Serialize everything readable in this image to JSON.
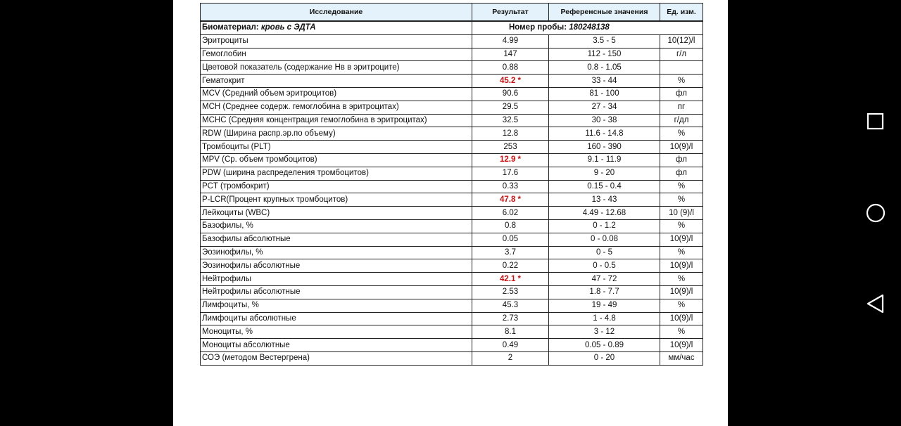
{
  "table": {
    "header": [
      "Исследование",
      "Результат",
      "Референсные значения",
      "Ед. изм."
    ],
    "biomaterial": {
      "label": "Биоматериал:",
      "value": "кровь с ЭДТА",
      "sample_label": "Номер пробы:",
      "sample": "180248138"
    },
    "rows": [
      {
        "name": "Эритроциты",
        "result": "4.99",
        "ref": "3.5 - 5",
        "unit": "10(12)/l"
      },
      {
        "name": "Гемоглобин",
        "result": "147",
        "ref": "112 - 150",
        "unit": "г/л"
      },
      {
        "name": "Цветовой показатель (содержание Нв в эритроците)",
        "result": "0.88",
        "ref": "0.8 - 1.05"
      },
      {
        "name": "Гематокрит",
        "result": "45.2 *",
        "ref": "33 - 44",
        "unit": "%"
      },
      {
        "name": "MCV (Средний объем эритроцитов)",
        "result": "90.6",
        "ref": "81 - 100",
        "unit": "фл"
      },
      {
        "name": "MCH (Среднее содерж.  гемоглобина в эритроцитах)",
        "result": "29.5",
        "ref": "27 - 34",
        "unit": "пг"
      },
      {
        "name": "MCHC (Средняя концентрация гемоглобина в эритроцитах)",
        "result": "32.5",
        "ref": "30 - 38",
        "unit": "г/дл"
      },
      {
        "name": "RDW (Ширина распр.эр.по объему)",
        "result": "12.8",
        "ref": "11.6 - 14.8",
        "unit": "%"
      },
      {
        "name": "Тромбоциты (PLT)",
        "result": "253",
        "ref": "160 - 390",
        "unit": "10(9)/l"
      },
      {
        "name": "MPV (Ср. объем тромбоцитов)",
        "result": "12.9 *",
        "ref": "9.1 - 11.9",
        "unit": "фл"
      },
      {
        "name": "PDW (ширина распределения тромбоцитов)",
        "result": "17.6",
        "ref": "9 - 20",
        "unit": "фл"
      },
      {
        "name": "PCT (тромбокрит)",
        "result": "0.33",
        "ref": "0.15 - 0.4",
        "unit": "%"
      },
      {
        "name": "P-LCR(Процент крупных тромбоцитов)",
        "result": "47.8 *",
        "ref": "13 - 43",
        "unit": "%"
      },
      {
        "name": "Лейкоциты (WBC)",
        "result": "6.02",
        "ref": "4.49 - 12.68",
        "unit": "10 (9)/l"
      },
      {
        "name": "Базофилы, %",
        "result": "0.8",
        "ref": "0 - 1.2",
        "unit": "%"
      },
      {
        "name": "Базофилы абсолютные",
        "result": "0.05",
        "ref": "0 - 0.08",
        "unit": "10(9)/l"
      },
      {
        "name": "Эозинофилы, %",
        "result": "3.7",
        "ref": "0 - 5",
        "unit": "%"
      },
      {
        "name": "Эозинофилы абсолютные",
        "result": "0.22",
        "ref": "0 - 0.5",
        "unit": "10(9)/l"
      },
      {
        "name": "Нейтрофилы",
        "result": "42.1 *",
        "ref": "47 - 72",
        "unit": "%"
      },
      {
        "name": "Нейтрофилы абсолютные",
        "result": "2.53",
        "ref": "1.8 - 7.7",
        "unit": "10(9)/l"
      },
      {
        "name": "Лимфоциты, %",
        "result": "45.3",
        "ref": "19 - 49",
        "unit": "%"
      },
      {
        "name": "Лимфоциты абсолютные",
        "result": "2.73",
        "ref": "1 - 4.8",
        "unit": "10(9)/l"
      },
      {
        "name": "Моноциты, %",
        "result": "8.1",
        "ref": "3 - 12",
        "unit": "%"
      },
      {
        "name": "Моноциты абсолютные",
        "result": "0.49",
        "ref": "0.05 - 0.89",
        "unit": "10(9)/l"
      },
      {
        "name": "СОЭ (методом Вестергрена)",
        "result": "2",
        "ref": "0 - 20",
        "unit": "мм/час"
      }
    ]
  }
}
